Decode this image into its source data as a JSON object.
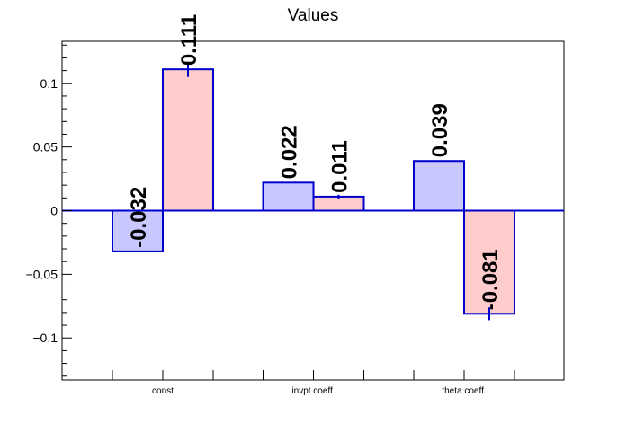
{
  "chart_data": {
    "type": "bar",
    "title": "Values",
    "categories": [
      "const",
      "invpt coeff.",
      "theta coeff."
    ],
    "series": [
      {
        "values": [
          -0.032,
          0.022,
          0.039
        ],
        "labels": [
          "-0.032",
          "0.022",
          "0.039"
        ],
        "errors": [
          0,
          0,
          0
        ]
      },
      {
        "values": [
          0.111,
          0.011,
          -0.081
        ],
        "labels": [
          "0.111",
          "0.011",
          "-0.081"
        ],
        "errors": [
          0.006,
          0.0015,
          0.005
        ]
      }
    ],
    "ylim": [
      -0.133,
      0.133
    ],
    "yticks": [
      -0.1,
      -0.05,
      0,
      0.05,
      0.1
    ],
    "ytick_labels": [
      "−0.1",
      "−0.05",
      "0",
      "0.05",
      "0.1"
    ],
    "grid": false,
    "colors": {
      "series_fill": [
        "#c8c8ff",
        "#ffcccc"
      ],
      "bar_edge": "#0000cc",
      "zero_line": "#0000cc"
    }
  }
}
